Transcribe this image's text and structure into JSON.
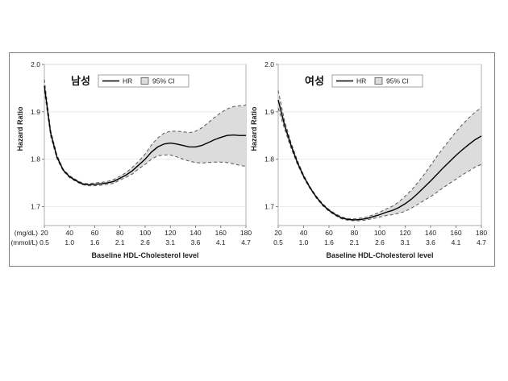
{
  "colors": {
    "hr_line": "#000000",
    "ci_fill": "#dcdcdc",
    "ci_line": "#555555",
    "grid": "#e6e6e6",
    "frame": "#7f7f7f"
  },
  "legend": {
    "hr": "HR",
    "ci": "95% CI"
  },
  "chart_data": [
    {
      "type": "line",
      "title": "남성",
      "ylabel": "Hazard Ratio",
      "xlabel": "Baseline HDL-Cholesterol level",
      "x_unit_mg": "(mg/dL)",
      "x_unit_mmol": "(mmol/L)",
      "xlim": [
        20,
        180
      ],
      "ylim": [
        1.66,
        2.0
      ],
      "yticks": [
        "1.7",
        "1.8",
        "1.9",
        "2.0"
      ],
      "xticks_mg": [
        "20",
        "40",
        "60",
        "80",
        "100",
        "120",
        "140",
        "160",
        "180"
      ],
      "xticks_mmol": [
        "0.5",
        "1.0",
        "1.6",
        "2.1",
        "2.6",
        "3.1",
        "3.6",
        "4.1",
        "4.7"
      ],
      "series": [
        {
          "name": "HR",
          "x": [
            20,
            25,
            30,
            35,
            40,
            45,
            50,
            55,
            60,
            65,
            70,
            75,
            80,
            85,
            90,
            95,
            100,
            105,
            110,
            115,
            120,
            125,
            130,
            135,
            140,
            145,
            150,
            155,
            160,
            165,
            170,
            175,
            180
          ],
          "y": [
            1.955,
            1.855,
            1.805,
            1.777,
            1.763,
            1.755,
            1.748,
            1.746,
            1.747,
            1.748,
            1.75,
            1.753,
            1.76,
            1.767,
            1.776,
            1.788,
            1.8,
            1.815,
            1.826,
            1.832,
            1.834,
            1.832,
            1.829,
            1.826,
            1.826,
            1.829,
            1.835,
            1.841,
            1.846,
            1.85,
            1.851,
            1.85,
            1.85
          ]
        },
        {
          "name": "95% CI lower",
          "x": [
            20,
            25,
            30,
            35,
            40,
            45,
            50,
            55,
            60,
            65,
            70,
            75,
            80,
            85,
            90,
            95,
            100,
            105,
            110,
            115,
            120,
            125,
            130,
            135,
            140,
            145,
            150,
            155,
            160,
            165,
            170,
            175,
            180
          ],
          "y": [
            1.945,
            1.849,
            1.801,
            1.775,
            1.761,
            1.753,
            1.746,
            1.744,
            1.744,
            1.745,
            1.747,
            1.749,
            1.756,
            1.762,
            1.769,
            1.78,
            1.789,
            1.8,
            1.807,
            1.809,
            1.809,
            1.805,
            1.8,
            1.796,
            1.793,
            1.792,
            1.793,
            1.794,
            1.794,
            1.793,
            1.79,
            1.787,
            1.785
          ]
        },
        {
          "name": "95% CI upper",
          "x": [
            20,
            25,
            30,
            35,
            40,
            45,
            50,
            55,
            60,
            65,
            70,
            75,
            80,
            85,
            90,
            95,
            100,
            105,
            110,
            115,
            120,
            125,
            130,
            135,
            140,
            145,
            150,
            155,
            160,
            165,
            170,
            175,
            180
          ],
          "y": [
            1.968,
            1.861,
            1.809,
            1.779,
            1.765,
            1.757,
            1.75,
            1.748,
            1.75,
            1.751,
            1.753,
            1.757,
            1.764,
            1.772,
            1.783,
            1.796,
            1.811,
            1.83,
            1.845,
            1.855,
            1.859,
            1.859,
            1.858,
            1.856,
            1.859,
            1.866,
            1.877,
            1.888,
            1.898,
            1.906,
            1.911,
            1.913,
            1.914
          ]
        }
      ]
    },
    {
      "type": "line",
      "title": "여성",
      "ylabel": "Hazard Ratio",
      "xlabel": "Baseline HDL-Cholesterol level",
      "x_unit_mg": "",
      "x_unit_mmol": "",
      "xlim": [
        20,
        180
      ],
      "ylim": [
        1.66,
        2.0
      ],
      "yticks": [
        "1.7",
        "1.8",
        "1.9",
        "2.0"
      ],
      "xticks_mg": [
        "20",
        "40",
        "60",
        "80",
        "100",
        "120",
        "140",
        "160",
        "180"
      ],
      "xticks_mmol": [
        "0.5",
        "1.0",
        "1.6",
        "2.1",
        "2.6",
        "3.1",
        "3.6",
        "4.1",
        "4.7"
      ],
      "series": [
        {
          "name": "HR",
          "x": [
            20,
            25,
            30,
            35,
            40,
            45,
            50,
            55,
            60,
            65,
            70,
            75,
            80,
            85,
            90,
            95,
            100,
            105,
            110,
            115,
            120,
            125,
            130,
            135,
            140,
            145,
            150,
            155,
            160,
            165,
            170,
            175,
            180
          ],
          "y": [
            1.925,
            1.872,
            1.83,
            1.794,
            1.764,
            1.74,
            1.72,
            1.704,
            1.692,
            1.683,
            1.676,
            1.673,
            1.672,
            1.673,
            1.675,
            1.679,
            1.683,
            1.688,
            1.692,
            1.698,
            1.706,
            1.716,
            1.728,
            1.741,
            1.754,
            1.768,
            1.782,
            1.795,
            1.808,
            1.82,
            1.831,
            1.841,
            1.849
          ]
        },
        {
          "name": "95% CI lower",
          "x": [
            20,
            25,
            30,
            35,
            40,
            45,
            50,
            55,
            60,
            65,
            70,
            75,
            80,
            85,
            90,
            95,
            100,
            105,
            110,
            115,
            120,
            125,
            130,
            135,
            140,
            145,
            150,
            155,
            160,
            165,
            170,
            175,
            180
          ],
          "y": [
            1.908,
            1.864,
            1.824,
            1.79,
            1.761,
            1.738,
            1.718,
            1.702,
            1.69,
            1.681,
            1.674,
            1.671,
            1.67,
            1.67,
            1.672,
            1.675,
            1.678,
            1.681,
            1.683,
            1.686,
            1.69,
            1.697,
            1.705,
            1.713,
            1.721,
            1.73,
            1.74,
            1.749,
            1.758,
            1.767,
            1.775,
            1.783,
            1.789
          ]
        },
        {
          "name": "95% CI upper",
          "x": [
            20,
            25,
            30,
            35,
            40,
            45,
            50,
            55,
            60,
            65,
            70,
            75,
            80,
            85,
            90,
            95,
            100,
            105,
            110,
            115,
            120,
            125,
            130,
            135,
            140,
            145,
            150,
            155,
            160,
            165,
            170,
            175,
            180
          ],
          "y": [
            1.945,
            1.881,
            1.836,
            1.798,
            1.767,
            1.742,
            1.722,
            1.706,
            1.694,
            1.685,
            1.678,
            1.675,
            1.674,
            1.676,
            1.678,
            1.683,
            1.688,
            1.695,
            1.701,
            1.71,
            1.722,
            1.735,
            1.751,
            1.768,
            1.787,
            1.806,
            1.824,
            1.841,
            1.858,
            1.873,
            1.887,
            1.899,
            1.909
          ]
        }
      ]
    }
  ]
}
